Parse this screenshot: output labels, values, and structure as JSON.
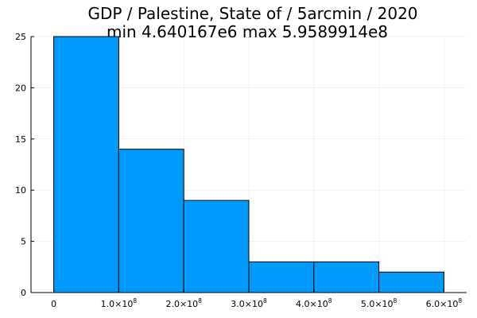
{
  "chart_data": {
    "type": "bar",
    "title": "GDP / Palestine, State of / 5arcmin / 2020",
    "subtitle": "min 4.640167e6  max 5.9589914e8",
    "bins": [
      {
        "start": 0,
        "end": 100000000,
        "count": 25
      },
      {
        "start": 100000000,
        "end": 200000000,
        "count": 14
      },
      {
        "start": 200000000,
        "end": 300000000,
        "count": 9
      },
      {
        "start": 300000000,
        "end": 400000000,
        "count": 3
      },
      {
        "start": 400000000,
        "end": 500000000,
        "count": 3
      },
      {
        "start": 500000000,
        "end": 600000000,
        "count": 2
      }
    ],
    "xlim": [
      -35000000,
      635000000
    ],
    "ylim": [
      0,
      25
    ],
    "x_ticks": [
      {
        "value": 0,
        "label": "0",
        "exp": ""
      },
      {
        "value": 100000000,
        "label": "1.0×10",
        "exp": "8"
      },
      {
        "value": 200000000,
        "label": "2.0×10",
        "exp": "8"
      },
      {
        "value": 300000000,
        "label": "3.0×10",
        "exp": "8"
      },
      {
        "value": 400000000,
        "label": "4.0×10",
        "exp": "8"
      },
      {
        "value": 500000000,
        "label": "5.0×10",
        "exp": "8"
      },
      {
        "value": 600000000,
        "label": "6.0×10",
        "exp": "8"
      }
    ],
    "y_ticks": [
      {
        "value": 0,
        "label": "0"
      },
      {
        "value": 5,
        "label": "5"
      },
      {
        "value": 10,
        "label": "10"
      },
      {
        "value": 15,
        "label": "15"
      },
      {
        "value": 20,
        "label": "20"
      },
      {
        "value": 25,
        "label": "25"
      }
    ],
    "grid": true,
    "legend": "none",
    "bar_color": "#009AFA",
    "edge_color": "#000000"
  }
}
